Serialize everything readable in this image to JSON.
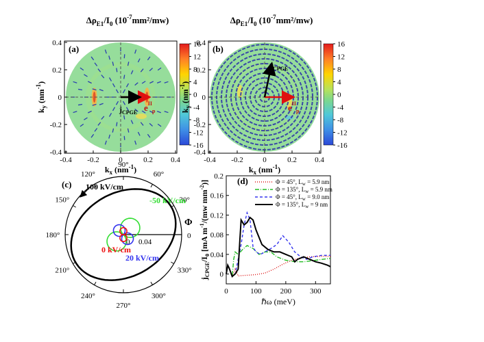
{
  "chart_data": [
    {
      "type": "heatmap",
      "panel": "(a)",
      "title_parts": {
        "main": "Δρ",
        "sub": "E1",
        "mid": "/I",
        "sub2": "0",
        "units": " (10",
        "exp": "-7",
        "tail": "mm²/mw)"
      },
      "xlabel": {
        "k": "k",
        "sub": "x",
        "unit": " (nm",
        "exp": "-1",
        "close": ")"
      },
      "ylabel": {
        "k": "k",
        "sub": "y",
        "unit": " (nm",
        "exp": "-1",
        "close": ")"
      },
      "xlim": [
        -0.4,
        0.4
      ],
      "ylim": [
        -0.4,
        0.4
      ],
      "xticks": [
        "-0.4",
        "-0.2",
        "0",
        "0.2",
        "0.4"
      ],
      "yticks": [
        "0.4",
        "0.2",
        "0",
        "-0.2",
        "-0.4"
      ],
      "colorbar": {
        "min": -16,
        "max": 16,
        "ticks": [
          "16",
          "12",
          "8",
          "4",
          "0",
          "-4",
          "-8",
          "-12",
          "-16"
        ]
      },
      "vector_field": "radial",
      "annotations": {
        "current": "j",
        "current_sub": "CPGE",
        "field": "e",
        "field_sup": "II",
        "field_sub": "p"
      },
      "current_angle_deg": 0
    },
    {
      "type": "heatmap",
      "panel": "(b)",
      "title_parts": {
        "main": "Δρ",
        "sub": "E1",
        "mid": "/I",
        "sub2": "0",
        "units": " (10",
        "exp": "-7",
        "tail": "mm²/mw)"
      },
      "xlabel": {
        "k": "k",
        "sub": "x",
        "unit": " (nm",
        "exp": "-1",
        "close": ")"
      },
      "ylabel": {
        "k": "k",
        "sub": "y",
        "unit": " (nm",
        "exp": "-1",
        "close": ")"
      },
      "xlim": [
        -0.4,
        0.4
      ],
      "ylim": [
        -0.4,
        0.4
      ],
      "xticks": [
        "-0.4",
        "-0.2",
        "0",
        "0.2",
        "0.4"
      ],
      "yticks": [
        "0.4",
        "0.2",
        "0",
        "-0.2",
        "-0.4"
      ],
      "colorbar": {
        "min": -16,
        "max": 16,
        "ticks": [
          "16",
          "12",
          "8",
          "4",
          "0",
          "-4",
          "-8",
          "-12",
          "-16"
        ]
      },
      "vector_field": "circular",
      "annotations": {
        "current": "j",
        "current_sub": "CPGE",
        "field": "e",
        "field_sup": "II",
        "field_sub": "p"
      },
      "current_angle_deg": 78
    },
    {
      "type": "polar",
      "panel": "(c)",
      "angle_label": "Φ",
      "angle_ticks": [
        "0",
        "30°",
        "60°",
        "90°",
        "120°",
        "150°",
        "180°",
        "210°",
        "240°",
        "270°",
        "300°",
        "330°"
      ],
      "radial_ticks": [
        "0",
        "0.04"
      ],
      "rmax": 0.1,
      "series": [
        {
          "name": "100 kV/cm",
          "color": "#000000",
          "rx": 0.095,
          "ry": 0.072
        },
        {
          "name": "-50 kV/cm",
          "color": "#33dd33",
          "r_amp": 0.033
        },
        {
          "name": "20 kV/cm",
          "color": "#3333ee",
          "r_amp": 0.02
        },
        {
          "name": "0 kV/cm",
          "color": "#ee1111",
          "r_amp": 0.012
        }
      ]
    },
    {
      "type": "line",
      "panel": "(d)",
      "xlabel": "ℏω (meV)",
      "ylabel_parts": {
        "j": "j",
        "jsub": "CPGE",
        "mid": "/I",
        "sub": "0",
        "units": " [mA m",
        "exp1": "-1",
        "mid2": "/(mw mm",
        "exp2": "-2",
        "tail": ")]"
      },
      "xlim": [
        0,
        350
      ],
      "ylim": [
        -0.02,
        0.2
      ],
      "xticks": [
        "0",
        "100",
        "200",
        "300"
      ],
      "yticks": [
        "0",
        "0.04",
        "0.08",
        "0.12",
        "0.16",
        "0.2"
      ],
      "legend": [
        {
          "phi": "Φ = 45°,",
          "lw": "L",
          "lw_sub": "w",
          "val": " = 5.9 nm",
          "color": "#dd1111",
          "dash": "1,2"
        },
        {
          "phi": "Φ = 135°,",
          "lw": "L",
          "lw_sub": "w",
          "val": " = 5.9 nm",
          "color": "#22bb22",
          "dash": "6,2,1,2"
        },
        {
          "phi": "Φ = 45°,",
          "lw": "L",
          "lw_sub": "w",
          "val": " = 9.0 nm",
          "color": "#3333ee",
          "dash": "4,3"
        },
        {
          "phi": "Φ = 135°,",
          "lw": "L",
          "lw_sub": "w",
          "val": " = 9 nm",
          "color": "#000000",
          "dash": ""
        }
      ],
      "series": [
        {
          "name": "Φ = 45°, Lw = 5.9 nm",
          "color": "#dd1111",
          "dash": "1,2",
          "x": [
            0,
            5,
            10,
            20,
            30,
            40,
            55,
            80,
            100,
            130,
            160,
            190,
            220,
            250,
            280,
            320,
            350
          ],
          "y": [
            0.0,
            0.018,
            0.012,
            -0.005,
            0.01,
            -0.004,
            -0.003,
            -0.002,
            -0.001,
            0.002,
            0.01,
            0.02,
            0.028,
            0.033,
            0.035,
            0.036,
            0.036
          ]
        },
        {
          "name": "Φ = 135°, Lw = 5.9 nm",
          "color": "#22bb22",
          "dash": "6,2,1,2",
          "x": [
            0,
            5,
            10,
            20,
            25,
            30,
            40,
            55,
            70,
            90,
            110,
            130,
            150,
            170,
            200,
            230,
            260,
            300,
            350
          ],
          "y": [
            0.0,
            0.018,
            0.012,
            -0.005,
            0.03,
            0.045,
            0.04,
            0.05,
            0.058,
            0.052,
            0.04,
            0.045,
            0.045,
            0.035,
            0.028,
            0.025,
            0.025,
            0.028,
            0.032
          ]
        },
        {
          "name": "Φ = 45°, Lw = 9.0 nm",
          "color": "#3333ee",
          "dash": "4,3",
          "x": [
            0,
            5,
            10,
            20,
            30,
            40,
            50,
            60,
            70,
            80,
            90,
            100,
            115,
            130,
            150,
            170,
            190,
            210,
            230,
            250,
            270,
            290,
            320,
            350
          ],
          "y": [
            0.0,
            0.018,
            0.012,
            -0.005,
            0.0,
            0.03,
            0.06,
            0.1,
            0.125,
            0.11,
            0.055,
            0.045,
            0.04,
            0.045,
            0.052,
            0.06,
            0.078,
            0.065,
            0.045,
            0.035,
            0.03,
            0.035,
            0.038,
            0.038
          ]
        },
        {
          "name": "Φ = 135°, Lw = 9 nm",
          "color": "#000000",
          "dash": "",
          "x": [
            0,
            5,
            10,
            20,
            30,
            40,
            45,
            50,
            60,
            70,
            80,
            90,
            100,
            120,
            140,
            160,
            180,
            200,
            220,
            230,
            240,
            260,
            280,
            300,
            320,
            340,
            350
          ],
          "y": [
            0.0,
            0.018,
            0.012,
            -0.005,
            0.0,
            0.01,
            0.06,
            0.11,
            0.1,
            0.105,
            0.115,
            0.11,
            0.09,
            0.06,
            0.05,
            0.045,
            0.045,
            0.04,
            0.035,
            0.025,
            0.03,
            0.035,
            0.03,
            0.025,
            0.022,
            0.018,
            0.015
          ]
        }
      ]
    }
  ]
}
